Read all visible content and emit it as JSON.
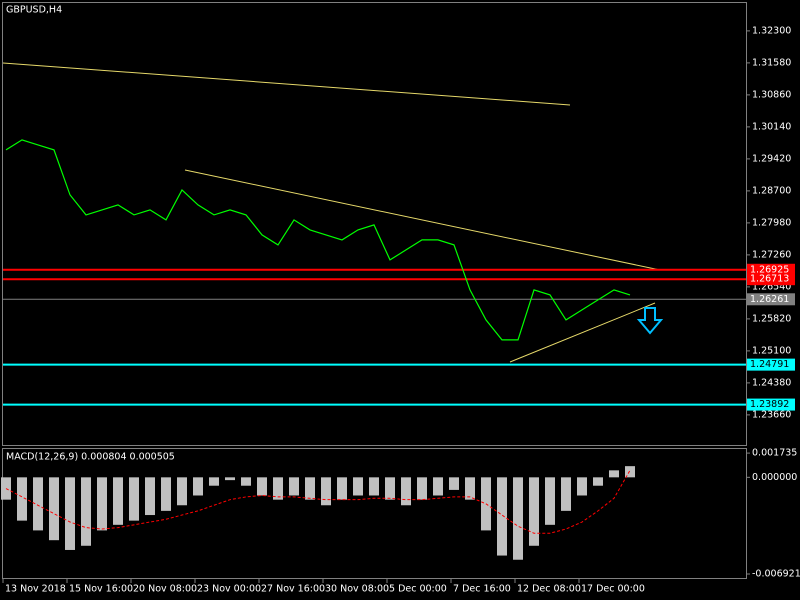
{
  "chart_data": [
    {
      "type": "line",
      "title": "GBPUSD,H4",
      "categories": [
        "13 Nov 2018",
        null,
        null,
        null,
        "15 Nov 16:00",
        null,
        null,
        null,
        "20 Nov 08:00",
        null,
        null,
        null,
        "23 Nov 00:00",
        null,
        null,
        null,
        "27 Nov 16:00",
        null,
        null,
        null,
        "30 Nov 08:00",
        null,
        null,
        null,
        "5 Dec 00:00",
        null,
        null,
        null,
        "7 Dec 16:00",
        null,
        null,
        null,
        "12 Dec 08:00",
        null,
        null,
        null,
        "17 Dec 00:00",
        null,
        null,
        null
      ],
      "values": [
        1.29622,
        1.29847,
        1.29735,
        1.29622,
        1.2861,
        1.2816,
        1.28272,
        1.28385,
        1.2816,
        1.28272,
        1.28047,
        1.28722,
        1.28385,
        1.2816,
        1.28272,
        1.2816,
        1.2771,
        1.27485,
        1.28047,
        1.27822,
        1.2771,
        1.27597,
        1.27822,
        1.27935,
        1.27147,
        1.27372,
        1.27597,
        1.27597,
        1.27485,
        1.26472,
        1.25797,
        1.25347,
        1.25347,
        1.26472,
        1.2636,
        1.25797,
        1.26022,
        1.26247,
        1.26472,
        1.2636
      ],
      "color": "#00ff00",
      "ylim": [
        1.2296,
        1.3295
      ],
      "yticks": [
        {
          "value": 1.323,
          "label": "1.32300"
        },
        {
          "value": 1.3158,
          "label": "1.31580"
        },
        {
          "value": 1.3086,
          "label": "1.30860"
        },
        {
          "value": 1.3014,
          "label": "1.30140"
        },
        {
          "value": 1.2942,
          "label": "1.29420"
        },
        {
          "value": 1.287,
          "label": "1.28700"
        },
        {
          "value": 1.2798,
          "label": "1.27980"
        },
        {
          "value": 1.2726,
          "label": "1.27260"
        },
        {
          "value": 1.2654,
          "label": "1.26540"
        },
        {
          "value": 1.2582,
          "label": "1.25820"
        },
        {
          "value": 1.251,
          "label": "1.25100"
        },
        {
          "value": 1.2438,
          "label": "1.24380"
        },
        {
          "value": 1.2366,
          "label": "1.23660"
        }
      ],
      "levels": [
        {
          "value": 1.26925,
          "color": "#ff0000"
        },
        {
          "value": 1.26713,
          "color": "#ff0000"
        },
        {
          "value": 1.26261,
          "color": "#808080"
        },
        {
          "value": 1.24791,
          "color": "#00ffff"
        },
        {
          "value": 1.23892,
          "color": "#00ffff"
        }
      ]
    },
    {
      "type": "bar",
      "title": "MACD(12,26,9) 0.000804 0.000505",
      "values": [
        -0.0016,
        -0.0031,
        -0.0038,
        -0.0045,
        -0.0052,
        -0.0049,
        -0.0038,
        -0.0034,
        -0.0031,
        -0.0027,
        -0.0024,
        -0.002,
        -0.0013,
        -0.0006,
        -0.0002,
        -0.0006,
        -0.0013,
        -0.0016,
        -0.0013,
        -0.0016,
        -0.002,
        -0.0016,
        -0.0013,
        -0.0013,
        -0.0016,
        -0.002,
        -0.0016,
        -0.0013,
        -0.0009,
        -0.0016,
        -0.0038,
        -0.0056,
        -0.0059,
        -0.0049,
        -0.0034,
        -0.0024,
        -0.0013,
        -0.0006,
        0.0005,
        0.0008
      ],
      "signal": [
        -0.0008,
        -0.0014,
        -0.002,
        -0.0026,
        -0.0032,
        -0.0036,
        -0.0037,
        -0.0036,
        -0.0034,
        -0.0032,
        -0.003,
        -0.0027,
        -0.0024,
        -0.002,
        -0.0016,
        -0.0014,
        -0.0013,
        -0.0014,
        -0.0014,
        -0.0015,
        -0.0016,
        -0.0016,
        -0.0016,
        -0.0015,
        -0.0015,
        -0.0016,
        -0.0016,
        -0.0015,
        -0.0014,
        -0.0014,
        -0.0019,
        -0.0027,
        -0.0035,
        -0.004,
        -0.004,
        -0.0037,
        -0.0032,
        -0.0024,
        -0.0015,
        0.0005
      ],
      "color": "#c0c0c0",
      "signal_color": "#ff0000",
      "ylim": [
        -0.006921,
        0.0021
      ],
      "yticks": [
        {
          "value": 0.001735,
          "label": "0.001735"
        },
        {
          "value": 0,
          "label": "0.000000"
        },
        {
          "value": -0.006921,
          "label": "-0.006921"
        }
      ]
    }
  ]
}
